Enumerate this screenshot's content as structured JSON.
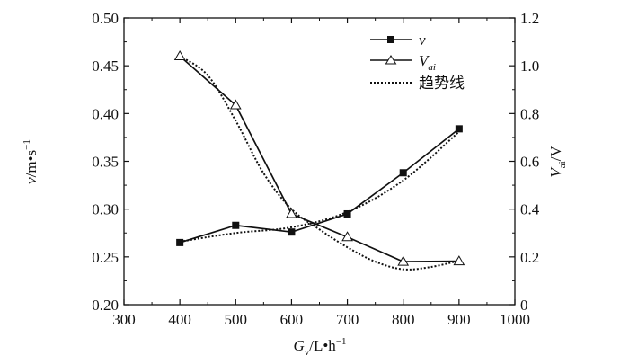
{
  "chart_data": {
    "type": "line",
    "title": "",
    "x": [
      400,
      500,
      600,
      700,
      800,
      900
    ],
    "xlim": [
      300,
      1000
    ],
    "x_ticks": [
      "300",
      "400",
      "500",
      "600",
      "700",
      "800",
      "900",
      "1000"
    ],
    "xlabel": {
      "main": "G",
      "sub": "v",
      "rest": "/L•h",
      "sup": "−1"
    },
    "left_axis": {
      "ylim": [
        0.2,
        0.5
      ],
      "ticks": [
        "0.20",
        "0.25",
        "0.30",
        "0.35",
        "0.40",
        "0.45",
        "0.50"
      ],
      "label": {
        "main": "v",
        "rest": "/m•s",
        "sup": "−1"
      }
    },
    "right_axis": {
      "ylim": [
        0,
        1.2
      ],
      "ticks": [
        "0",
        "0.2",
        "0.4",
        "0.6",
        "0.8",
        "1.0",
        "1.2"
      ],
      "label": {
        "main": "V",
        "sub": "ai",
        "rest": "/V"
      }
    },
    "series": [
      {
        "name": "v",
        "axis": "left",
        "marker": "filled-square",
        "values": [
          0.265,
          0.283,
          0.276,
          0.295,
          0.338,
          0.384
        ]
      },
      {
        "name": "Vai",
        "label_main": "V",
        "label_sub": "ai",
        "axis": "right",
        "marker": "open-triangle",
        "values": [
          1.04,
          0.835,
          0.38,
          0.283,
          0.18,
          0.182
        ]
      }
    ],
    "trend_lines": {
      "name": "趋势线",
      "style": "dotted",
      "v_trend": {
        "x": [
          400,
          500,
          600,
          700,
          800,
          900
        ],
        "values": [
          0.266,
          0.275,
          0.281,
          0.297,
          0.33,
          0.381
        ]
      },
      "vai_trend": {
        "x": [
          400,
          450,
          500,
          550,
          600,
          650,
          700,
          750,
          800,
          850,
          900
        ],
        "values": [
          1.04,
          0.96,
          0.77,
          0.55,
          0.4,
          0.315,
          0.24,
          0.18,
          0.148,
          0.158,
          0.184
        ]
      }
    },
    "legend": {
      "position": "top-right"
    },
    "grid": false
  }
}
